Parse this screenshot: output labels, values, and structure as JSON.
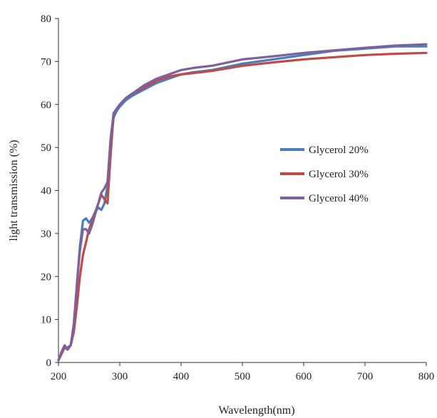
{
  "chart_data": {
    "type": "line",
    "title": "",
    "xlabel": "Wavelength(nm)",
    "ylabel": "light transmission (%)",
    "xlim": [
      200,
      800
    ],
    "ylim": [
      0,
      80
    ],
    "xticks": [
      200,
      300,
      400,
      500,
      600,
      700,
      800
    ],
    "yticks": [
      0,
      10,
      20,
      30,
      40,
      50,
      60,
      70,
      80
    ],
    "grid": false,
    "legend_position": "center-right",
    "series": [
      {
        "name": "Glycerol 20%",
        "color": "#4a7ebb",
        "points": [
          [
            200,
            0.5
          ],
          [
            205,
            2
          ],
          [
            210,
            3.5
          ],
          [
            215,
            3
          ],
          [
            220,
            4
          ],
          [
            225,
            8
          ],
          [
            230,
            18
          ],
          [
            235,
            27
          ],
          [
            240,
            33
          ],
          [
            245,
            33.5
          ],
          [
            250,
            32.5
          ],
          [
            255,
            33.5
          ],
          [
            260,
            35
          ],
          [
            265,
            36
          ],
          [
            270,
            35.5
          ],
          [
            275,
            37
          ],
          [
            280,
            41
          ],
          [
            285,
            50
          ],
          [
            290,
            57
          ],
          [
            295,
            58.5
          ],
          [
            300,
            59.5
          ],
          [
            310,
            61
          ],
          [
            320,
            62
          ],
          [
            340,
            63.5
          ],
          [
            360,
            65
          ],
          [
            380,
            66
          ],
          [
            400,
            67
          ],
          [
            420,
            67.5
          ],
          [
            450,
            68
          ],
          [
            500,
            69.5
          ],
          [
            550,
            70.5
          ],
          [
            600,
            71.5
          ],
          [
            650,
            72.5
          ],
          [
            700,
            73
          ],
          [
            750,
            73.5
          ],
          [
            800,
            73.5
          ]
        ]
      },
      {
        "name": "Glycerol 30%",
        "color": "#be4b48",
        "points": [
          [
            200,
            0.5
          ],
          [
            205,
            2
          ],
          [
            210,
            3.5
          ],
          [
            215,
            3.5
          ],
          [
            220,
            4
          ],
          [
            225,
            7
          ],
          [
            230,
            13
          ],
          [
            235,
            20
          ],
          [
            240,
            25
          ],
          [
            245,
            28
          ],
          [
            250,
            31
          ],
          [
            255,
            33
          ],
          [
            260,
            35
          ],
          [
            265,
            37
          ],
          [
            270,
            39
          ],
          [
            275,
            38
          ],
          [
            280,
            37
          ],
          [
            285,
            48
          ],
          [
            290,
            58
          ],
          [
            295,
            59
          ],
          [
            300,
            60
          ],
          [
            310,
            61.5
          ],
          [
            320,
            62.5
          ],
          [
            340,
            64
          ],
          [
            360,
            65.5
          ],
          [
            380,
            66.5
          ],
          [
            400,
            67
          ],
          [
            420,
            67.3
          ],
          [
            450,
            67.8
          ],
          [
            500,
            69
          ],
          [
            550,
            69.8
          ],
          [
            600,
            70.5
          ],
          [
            650,
            71
          ],
          [
            700,
            71.5
          ],
          [
            750,
            71.8
          ],
          [
            800,
            72
          ]
        ]
      },
      {
        "name": "Glycerol 40%",
        "color": "#7d60a0",
        "points": [
          [
            200,
            0.5
          ],
          [
            205,
            2.5
          ],
          [
            210,
            4
          ],
          [
            215,
            3
          ],
          [
            220,
            4
          ],
          [
            225,
            9
          ],
          [
            230,
            18
          ],
          [
            235,
            26
          ],
          [
            240,
            31
          ],
          [
            245,
            31
          ],
          [
            250,
            30
          ],
          [
            255,
            32
          ],
          [
            260,
            34.5
          ],
          [
            265,
            37
          ],
          [
            270,
            39.5
          ],
          [
            275,
            40.5
          ],
          [
            280,
            42
          ],
          [
            285,
            52
          ],
          [
            290,
            58
          ],
          [
            295,
            59
          ],
          [
            300,
            60
          ],
          [
            310,
            61.5
          ],
          [
            320,
            62.5
          ],
          [
            340,
            64.5
          ],
          [
            360,
            66
          ],
          [
            380,
            67
          ],
          [
            400,
            68
          ],
          [
            420,
            68.5
          ],
          [
            450,
            69
          ],
          [
            500,
            70.5
          ],
          [
            550,
            71.2
          ],
          [
            600,
            72
          ],
          [
            650,
            72.6
          ],
          [
            700,
            73.2
          ],
          [
            750,
            73.7
          ],
          [
            800,
            74
          ]
        ]
      }
    ]
  }
}
